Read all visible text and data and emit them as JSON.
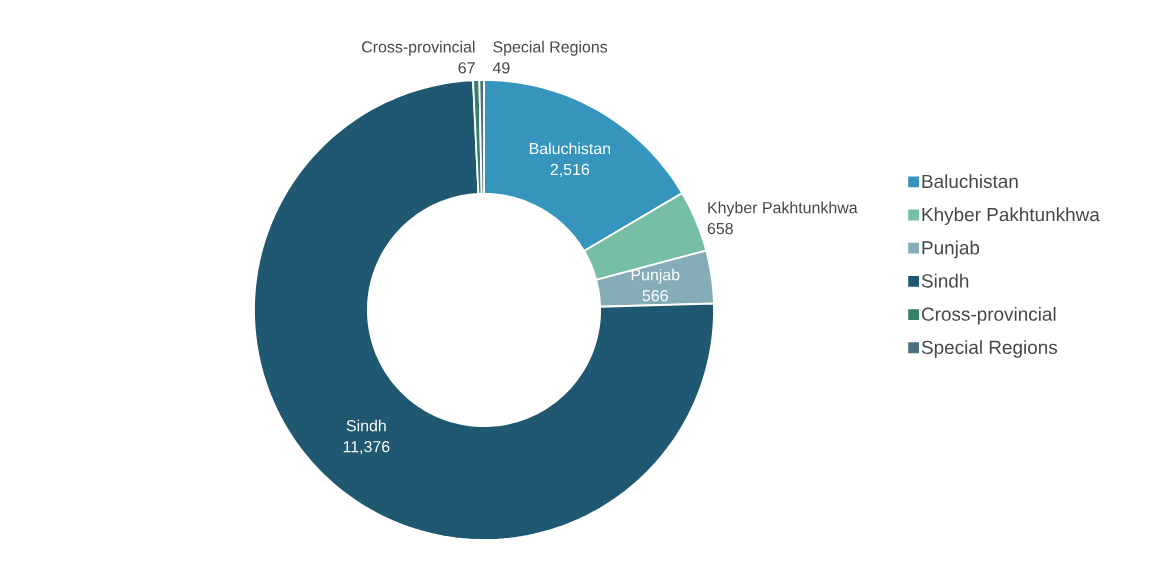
{
  "chart_data": {
    "type": "donut",
    "categories": [
      "Baluchistan",
      "Khyber Pakhtunkhwa",
      "Punjab",
      "Sindh",
      "Cross-provincial",
      "Special Regions"
    ],
    "values": [
      2516,
      658,
      566,
      11376,
      67,
      49
    ],
    "value_labels": [
      "2,516",
      "658",
      "566",
      "11,376",
      "67",
      "49"
    ],
    "colors": [
      "#3595bc",
      "#76bfa6",
      "#85adb8",
      "#1f5870",
      "#3a7f6a",
      "#4a7080"
    ],
    "legend": "right"
  }
}
